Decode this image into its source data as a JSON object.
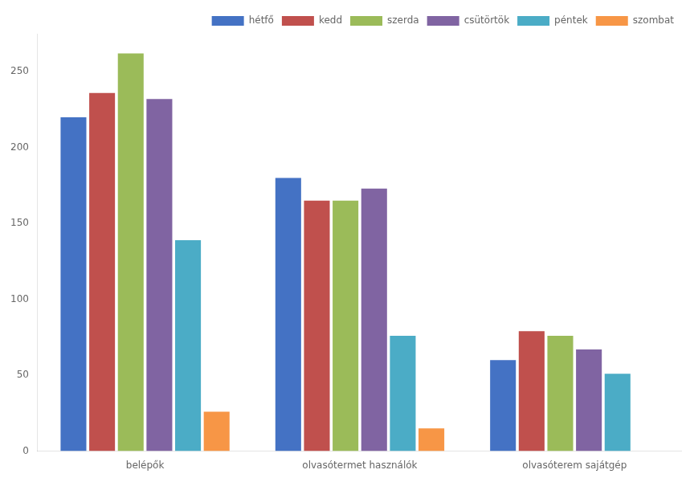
{
  "chart_data": {
    "type": "bar",
    "categories": [
      "belépők",
      "olvasótermet használók",
      "olvasóterem sajátgép"
    ],
    "series": [
      {
        "name": "hétfő",
        "color": "#4472C4",
        "values": [
          220,
          180,
          60
        ]
      },
      {
        "name": "kedd",
        "color": "#C0504D",
        "values": [
          236,
          165,
          79
        ]
      },
      {
        "name": "szerda",
        "color": "#9BBB59",
        "values": [
          262,
          165,
          76
        ]
      },
      {
        "name": "csütörtök",
        "color": "#8064A2",
        "values": [
          232,
          173,
          67
        ]
      },
      {
        "name": "péntek",
        "color": "#4BACC6",
        "values": [
          139,
          76,
          51
        ]
      },
      {
        "name": "szombat",
        "color": "#F79646",
        "values": [
          26,
          15,
          0
        ]
      }
    ],
    "ylim": [
      0,
      275
    ],
    "yticks": [
      0,
      50,
      100,
      150,
      200,
      250
    ],
    "grid": false,
    "legend": "upper right"
  }
}
